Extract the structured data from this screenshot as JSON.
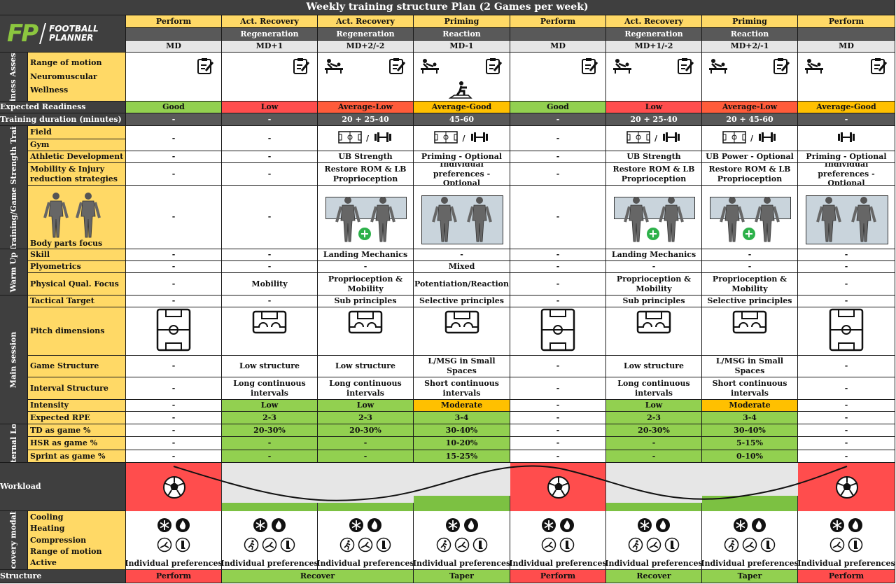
{
  "title": "Weekly training structure Plan (2 Games per week)",
  "logo": {
    "mark": "FP",
    "line1": "FOOTBALL",
    "line2": "PLANNER"
  },
  "days": [
    {
      "focus": "Perform",
      "sub": "",
      "md": "MD",
      "readiness": "Good",
      "readiness_color": "#92d050",
      "duration": "-",
      "field": "-",
      "athletic": "-",
      "mobility": "-",
      "body": false,
      "body_plus": false,
      "skill": "-",
      "plyo": "-",
      "phys": "-",
      "tactical": "-",
      "pitch": "full",
      "game": "-",
      "interval": "-",
      "intensity": "-",
      "intensity_color": "#ffffff",
      "rpe": "-",
      "td": "-",
      "hsr": "-",
      "sprint": "-",
      "workload": "high",
      "recovery_icons": "basic",
      "recovery_text": "Individual preferences"
    },
    {
      "focus": "Act. Recovery",
      "sub": "Regeneration",
      "md": "MD+1",
      "readiness": "Low",
      "readiness_color": "#ff4d4d",
      "duration": "-",
      "field": "-",
      "athletic": "-",
      "mobility": "-",
      "body": false,
      "body_plus": false,
      "skill": "-",
      "plyo": "-",
      "phys": "Mobility",
      "tactical": "-",
      "pitch": "small",
      "game": "Low structure",
      "interval": "Long continuous intervals",
      "intensity": "Low",
      "intensity_color": "#92d050",
      "rpe": "2-3",
      "td": "20-30%",
      "hsr": "-",
      "sprint": "-",
      "workload": "low",
      "recovery_icons": "full",
      "recovery_text": "Individual preferences"
    },
    {
      "focus": "Act. Recovery",
      "sub": "Regeneration",
      "md": "MD+2/-2",
      "readiness": "Average-Low",
      "readiness_color": "#ff5b3a",
      "duration": "20 + 25-40",
      "field": "field-gym",
      "athletic": "UB Strength",
      "mobility": "Restore ROM & LB Proprioception",
      "body": true,
      "body_plus": true,
      "skill": "Landing Mechanics",
      "plyo": "-",
      "phys": "Proprioception & Mobility",
      "tactical": "Sub principles",
      "pitch": "small",
      "game": "Low structure",
      "interval": "Long continuous intervals",
      "intensity": "Low",
      "intensity_color": "#92d050",
      "rpe": "2-3",
      "td": "20-30%",
      "hsr": "-",
      "sprint": "-",
      "workload": "low",
      "recovery_icons": "full",
      "recovery_text": "Individual preferences"
    },
    {
      "focus": "Priming",
      "sub": "Reaction",
      "md": "MD-1",
      "readiness": "Average-Good",
      "readiness_color": "#ffc000",
      "duration": "45-60",
      "field": "field-gym",
      "athletic": "Priming - Optional",
      "mobility": "Individual preferences - Optional",
      "body": true,
      "body_plus": false,
      "skill": "-",
      "plyo": "Mixed",
      "phys": "Potentiation/Reaction",
      "tactical": "Selective principles",
      "pitch": "small",
      "game": "L/MSG in Small Spaces",
      "interval": "Short continuous intervals",
      "intensity": "Moderate",
      "intensity_color": "#ffc000",
      "rpe": "3-4",
      "td": "30-40%",
      "hsr": "10-20%",
      "sprint": "15-25%",
      "workload": "mid",
      "recovery_icons": "full",
      "recovery_text": "Individual preferences"
    },
    {
      "focus": "Perform",
      "sub": "",
      "md": "MD",
      "readiness": "Good",
      "readiness_color": "#92d050",
      "duration": "-",
      "field": "-",
      "athletic": "-",
      "mobility": "-",
      "body": false,
      "body_plus": false,
      "skill": "-",
      "plyo": "-",
      "phys": "-",
      "tactical": "-",
      "pitch": "full",
      "game": "-",
      "interval": "-",
      "intensity": "-",
      "intensity_color": "#ffffff",
      "rpe": "-",
      "td": "-",
      "hsr": "-",
      "sprint": "-",
      "workload": "high",
      "recovery_icons": "basic",
      "recovery_text": "Individual preferences"
    },
    {
      "focus": "Act. Recovery",
      "sub": "Regeneration",
      "md": "MD+1/-2",
      "readiness": "Low",
      "readiness_color": "#ff4d4d",
      "duration": "20 + 25-40",
      "field": "field-gym",
      "athletic": "UB Strength",
      "mobility": "Restore ROM & LB Proprioception",
      "body": true,
      "body_plus": true,
      "skill": "Landing Mechanics",
      "plyo": "-",
      "phys": "Proprioception & Mobility",
      "tactical": "Sub principles",
      "pitch": "small",
      "game": "Low structure",
      "interval": "Long continuous intervals",
      "intensity": "Low",
      "intensity_color": "#92d050",
      "rpe": "2-3",
      "td": "20-30%",
      "hsr": "-",
      "sprint": "-",
      "workload": "low",
      "recovery_icons": "full",
      "recovery_text": "Individual preferences"
    },
    {
      "focus": "Priming",
      "sub": "Reaction",
      "md": "MD+2/-1",
      "readiness": "Average-Low",
      "readiness_color": "#ff5b3a",
      "duration": "20 + 45-60",
      "field": "field-gym",
      "athletic": "UB Power - Optional",
      "mobility": "Restore ROM & LB Proprioception",
      "body": true,
      "body_plus": true,
      "skill": "-",
      "plyo": "-",
      "phys": "Proprioception & Mobility",
      "tactical": "Selective principles",
      "pitch": "small",
      "game": "L/MSG in Small Spaces",
      "interval": "Short continuous intervals",
      "intensity": "Moderate",
      "intensity_color": "#ffc000",
      "rpe": "3-4",
      "td": "30-40%",
      "hsr": "5-15%",
      "sprint": "0-10%",
      "workload": "mid",
      "recovery_icons": "full",
      "recovery_text": "Individual preferences"
    },
    {
      "focus": "Perform",
      "sub": "",
      "md": "MD",
      "readiness": "Average-Good",
      "readiness_color": "#ffc000",
      "duration": "-",
      "field": "gym",
      "athletic": "Priming - Optional",
      "mobility": "Individual preferences - Optional",
      "body": true,
      "body_plus": false,
      "skill": "-",
      "plyo": "-",
      "phys": "-",
      "tactical": "-",
      "pitch": "full",
      "game": "-",
      "interval": "-",
      "intensity": "-",
      "intensity_color": "#ffffff",
      "rpe": "-",
      "td": "-",
      "hsr": "-",
      "sprint": "-",
      "workload": "high",
      "recovery_icons": "basic",
      "recovery_text": "Individual preferences"
    }
  ],
  "labels": {
    "readiness_section": "Readiness Assesment",
    "range_of_motion": "Range of motion",
    "neuromuscular": "Neuromuscular",
    "wellness": "Wellness",
    "expected_readiness": "Expected Readiness",
    "training_duration": "Training duration (minutes)",
    "strength_section": "Pre-Training/Game Strength Training",
    "field": "Field",
    "gym": "Gym",
    "athletic": "Athletic Development",
    "mobility": "Mobility & Injury reduction strategies",
    "body_parts": "Body parts focus",
    "warmup_section": "Warm Up",
    "skill": "Skill",
    "plyometrics": "Plyometrics",
    "physical": "Physical Qual. Focus",
    "main_section": "Main session",
    "tactical": "Tactical Target",
    "pitch": "Pitch dimensions",
    "game": "Game Structure",
    "interval": "Interval Structure",
    "intensity": "Intensity",
    "rpe": "Expected RPE",
    "external_section": "External Load",
    "td": "TD as game %",
    "hsr": "HSR as game %",
    "sprint": "Sprint as game %",
    "workload": "Workload",
    "recovery_section": "Recovery modality",
    "cooling": "Cooling",
    "heating": "Heating",
    "compression": "Compression",
    "rom": "Range of motion",
    "active": "Active",
    "structure": "Structure"
  },
  "structure": [
    {
      "label": "Perform",
      "color": "#ff4d4d",
      "span": 1
    },
    {
      "label": "Recover",
      "color": "#92d050",
      "span": 2
    },
    {
      "label": "Taper",
      "color": "#92d050",
      "span": 1
    },
    {
      "label": "Perform",
      "color": "#ff4d4d",
      "span": 1
    },
    {
      "label": "Recover",
      "color": "#92d050",
      "span": 1
    },
    {
      "label": "Taper",
      "color": "#92d050",
      "span": 1
    },
    {
      "label": "Perform",
      "color": "#ff4d4d",
      "span": 1
    }
  ],
  "colors": {
    "header_dark": "#3f3f3f",
    "label_yellow": "#ffd966",
    "grid_grey": "#e6e6e6",
    "good": "#92d050",
    "low": "#ff4d4d",
    "avg_low": "#ff5b3a",
    "avg_good": "#ffc000"
  }
}
